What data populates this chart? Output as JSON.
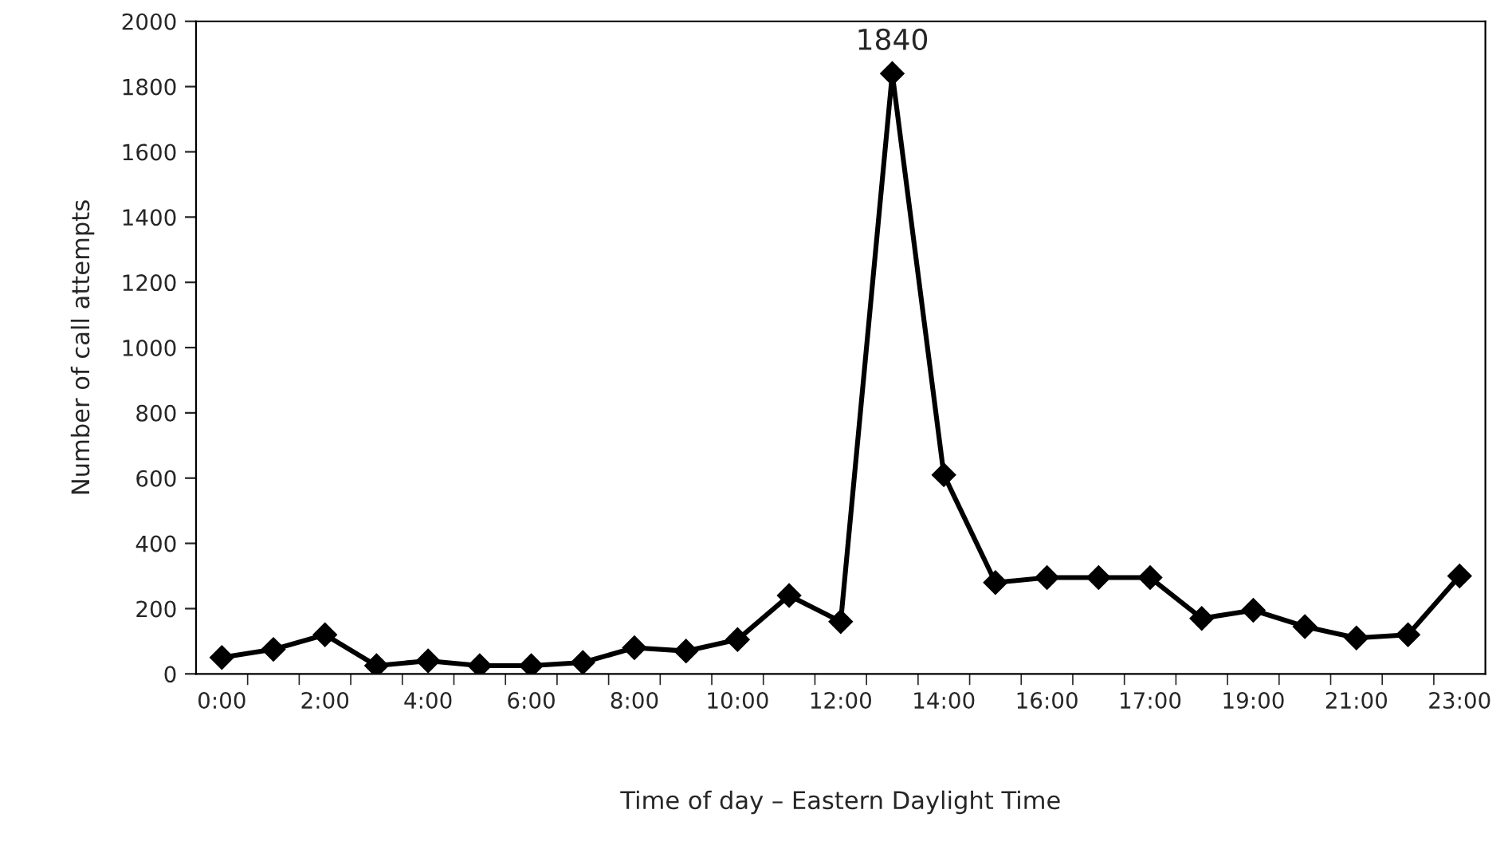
{
  "chart_data": {
    "type": "line",
    "categories": [
      "0:00",
      null,
      "2:00",
      null,
      "4:00",
      null,
      "6:00",
      null,
      "8:00",
      null,
      "10:00",
      null,
      "12:00",
      null,
      "14:00",
      null,
      "16:00",
      null,
      "17:00",
      null,
      "19:00",
      null,
      "21:00",
      null,
      "23:00"
    ],
    "series": [
      {
        "color": "#000000",
        "values": [
          50,
          75,
          120,
          25,
          40,
          25,
          25,
          35,
          80,
          70,
          105,
          240,
          160,
          1840,
          610,
          280,
          295,
          295,
          295,
          170,
          195,
          145,
          110,
          120,
          300
        ]
      }
    ],
    "value_labels": [
      null,
      null,
      null,
      null,
      null,
      null,
      null,
      null,
      null,
      null,
      null,
      null,
      null,
      "1840",
      null,
      null,
      null,
      null,
      null,
      null,
      null,
      null,
      null,
      null,
      null
    ],
    "xlabel": "Time of day – Eastern Daylight Time",
    "ylabel": "Number of call attempts",
    "ylim": [
      0,
      2000
    ],
    "yticks": [
      0,
      200,
      400,
      600,
      800,
      1000,
      1200,
      1400,
      1600,
      1800,
      2000
    ],
    "marker": "diamond",
    "line_style": "solid",
    "grid": false,
    "legend": false
  }
}
